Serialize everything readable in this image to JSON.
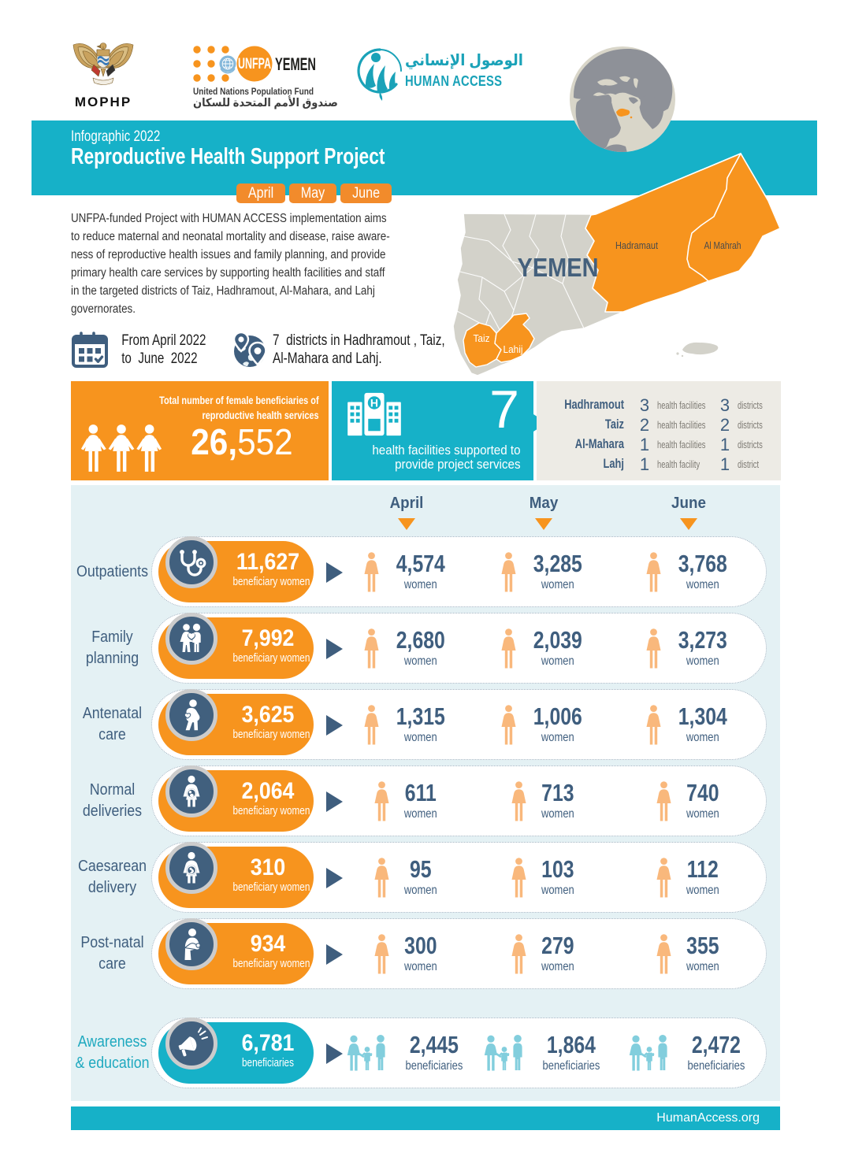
{
  "colors": {
    "teal": "#16b1c8",
    "orange": "#f7941e",
    "orange_badge": "#f28b2b",
    "slate": "#3f5e7e",
    "panel_bg": "#e4f1f4",
    "graybox_bg": "#edebe5",
    "map_gray": "#d3d2ca",
    "woman_icon_orange": "#f9b87c",
    "family_icon_teal": "#82cedd"
  },
  "header": {
    "mophp_label": "MOPHP",
    "unfpa": {
      "brand": "UNFPA",
      "country": "YEMEN",
      "line1": "United Nations Population Fund",
      "line2_ar": "صندوق الأمم المتحدة للسكان"
    },
    "human_access": {
      "ar": "الوصول الإنساني",
      "en": "HUMAN ACCESS"
    }
  },
  "banner": {
    "kicker": "Infographic 2022",
    "title": "Reproductive Health Support Project",
    "months": [
      "April",
      "May",
      "June"
    ]
  },
  "intro": {
    "paragraph_lines": [
      "UNFPA-funded Project with HUMAN ACCESS implementation aims",
      "to reduce maternal and neonatal mortality and disease, raise aware-",
      "ness of reproductive health issues and family planning, and provide",
      "primary health care services by supporting health facilities and staff",
      "in the targeted districts of Taiz, Hadhramout, Al-Mahara, and Lahj",
      "governorates."
    ],
    "period_line1": "From April 2022",
    "period_line2": "to  June  2022",
    "districts_line1": "7  districts in Hadhramout , Taiz,",
    "districts_line2": "Al-Mahara and Lahj."
  },
  "map": {
    "country_label": "YEMEN",
    "region_labels": {
      "hadramaut": "Hadramaut",
      "al_mahrah": "Al Mahrah",
      "taiz": "Taiz",
      "lahij": "Lahij"
    }
  },
  "summary": {
    "total": {
      "title_line1": "Total number of female beneficiaries of",
      "title_line2": "reproductive health services",
      "value_bold": "26,",
      "value_light": "552"
    },
    "facilities": {
      "value": "7",
      "caption_line1": "health facilities supported to",
      "caption_line2": "provide project services"
    },
    "by_governorate": [
      {
        "name": "Hadhramout",
        "facilities": "3",
        "facilities_label": "health facilities",
        "districts": "3",
        "districts_label": "districts"
      },
      {
        "name": "Taiz",
        "facilities": "2",
        "facilities_label": "health facilities",
        "districts": "2",
        "districts_label": "districts"
      },
      {
        "name": "Al-Mahara",
        "facilities": "1",
        "facilities_label": "health facilities",
        "districts": "1",
        "districts_label": "districts"
      },
      {
        "name": "Lahj",
        "facilities": "1",
        "facilities_label": "health facility",
        "districts": "1",
        "districts_label": "district"
      }
    ]
  },
  "table": {
    "months": [
      "April",
      "May",
      "June"
    ],
    "rows": [
      {
        "label_lines": [
          "Outpatients"
        ],
        "icon": "stethoscope-icon",
        "total": "11,627",
        "total_label": "beneficiary women",
        "unit": "women",
        "values": [
          "4,574",
          "3,285",
          "3,768"
        ],
        "variant": "orange"
      },
      {
        "label_lines": [
          "Family",
          "planning"
        ],
        "icon": "family-planning-icon",
        "total": "7,992",
        "total_label": "beneficiary women",
        "unit": "women",
        "values": [
          "2,680",
          "2,039",
          "3,273"
        ],
        "variant": "orange"
      },
      {
        "label_lines": [
          "Antenatal",
          "care"
        ],
        "icon": "antenatal-icon",
        "total": "3,625",
        "total_label": "beneficiary women",
        "unit": "women",
        "values": [
          "1,315",
          "1,006",
          "1,304"
        ],
        "variant": "orange"
      },
      {
        "label_lines": [
          "Normal",
          "deliveries"
        ],
        "icon": "normal-delivery-icon",
        "total": "2,064",
        "total_label": "beneficiary women",
        "unit": "women",
        "values": [
          "611",
          "713",
          "740"
        ],
        "variant": "orange"
      },
      {
        "label_lines": [
          "Caesarean",
          "delivery"
        ],
        "icon": "caesarean-icon",
        "total": "310",
        "total_label": "beneficiary women",
        "unit": "women",
        "values": [
          "95",
          "103",
          "112"
        ],
        "variant": "orange"
      },
      {
        "label_lines": [
          "Post-natal",
          "care"
        ],
        "icon": "postnatal-icon",
        "total": "934",
        "total_label": "beneficiary women",
        "unit": "women",
        "values": [
          "300",
          "279",
          "355"
        ],
        "variant": "orange"
      },
      {
        "label_lines": [
          "Awareness",
          "& education"
        ],
        "icon": "megaphone-icon",
        "total": "6,781",
        "total_label": "beneficiaries",
        "unit": "beneficiaries",
        "values": [
          "2,445",
          "1,864",
          "2,472"
        ],
        "variant": "teal"
      }
    ]
  },
  "footer": {
    "website": "HumanAccess.org"
  },
  "chart_data": {
    "type": "table",
    "title": "Reproductive Health Support Project — Infographic 2022 (April–June)",
    "categories": [
      "April",
      "May",
      "June"
    ],
    "series": [
      {
        "name": "Outpatients",
        "total": 11627,
        "values": [
          4574,
          3285,
          3768
        ],
        "unit": "women"
      },
      {
        "name": "Family planning",
        "total": 7992,
        "values": [
          2680,
          2039,
          3273
        ],
        "unit": "women"
      },
      {
        "name": "Antenatal care",
        "total": 3625,
        "values": [
          1315,
          1006,
          1304
        ],
        "unit": "women"
      },
      {
        "name": "Normal deliveries",
        "total": 2064,
        "values": [
          611,
          713,
          740
        ],
        "unit": "women"
      },
      {
        "name": "Caesarean delivery",
        "total": 310,
        "values": [
          95,
          103,
          112
        ],
        "unit": "women"
      },
      {
        "name": "Post-natal care",
        "total": 934,
        "values": [
          300,
          279,
          355
        ],
        "unit": "women"
      },
      {
        "name": "Awareness & education",
        "total": 6781,
        "values": [
          2445,
          1864,
          2472
        ],
        "unit": "beneficiaries"
      }
    ],
    "annotations": {
      "total_female_beneficiaries": 26552,
      "health_facilities_supported": 7,
      "by_governorate": [
        {
          "name": "Hadhramout",
          "health_facilities": 3,
          "districts": 3
        },
        {
          "name": "Taiz",
          "health_facilities": 2,
          "districts": 2
        },
        {
          "name": "Al-Mahara",
          "health_facilities": 1,
          "districts": 1
        },
        {
          "name": "Lahj",
          "health_facilities": 1,
          "districts": 1
        }
      ]
    }
  }
}
